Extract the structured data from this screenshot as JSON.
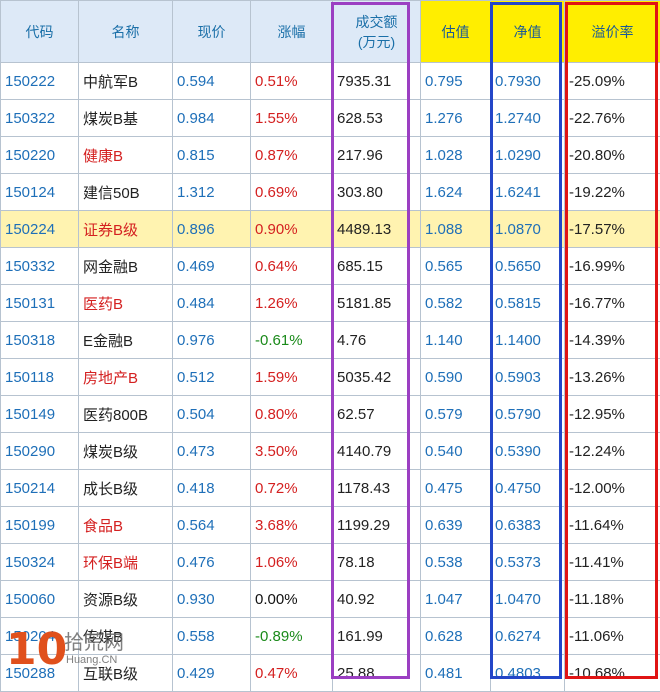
{
  "columns": {
    "code": "代码",
    "name": "名称",
    "price": "现价",
    "change": "涨幅",
    "volume": "成交额",
    "volume_unit": "(万元)",
    "estimate": "估值",
    "nav": "净值",
    "premium": "溢价率"
  },
  "colors": {
    "header_bg": "#dde9f7",
    "header_highlight_bg": "#ffee00",
    "row_highlight_bg": "#fff3b0",
    "volume_outline": "#9b3fc2",
    "nav_outline": "#2346c8",
    "premium_outline": "#e01414"
  },
  "rows": [
    {
      "code": "150222",
      "name": "中航军B",
      "name_red": false,
      "price": "0.594",
      "change": "0.51%",
      "dir": "up",
      "volume": "7935.31",
      "estimate": "0.795",
      "nav": "0.7930",
      "premium": "-25.09%"
    },
    {
      "code": "150322",
      "name": "煤炭B基",
      "name_red": false,
      "price": "0.984",
      "change": "1.55%",
      "dir": "up",
      "volume": "628.53",
      "estimate": "1.276",
      "nav": "1.2740",
      "premium": "-22.76%"
    },
    {
      "code": "150220",
      "name": "健康B",
      "name_red": true,
      "price": "0.815",
      "change": "0.87%",
      "dir": "up",
      "volume": "217.96",
      "estimate": "1.028",
      "nav": "1.0290",
      "premium": "-20.80%"
    },
    {
      "code": "150124",
      "name": "建信50B",
      "name_red": false,
      "price": "1.312",
      "change": "0.69%",
      "dir": "up",
      "volume": "303.80",
      "estimate": "1.624",
      "nav": "1.6241",
      "premium": "-19.22%"
    },
    {
      "code": "150224",
      "name": "证券B级",
      "name_red": true,
      "highlight": true,
      "price": "0.896",
      "change": "0.90%",
      "dir": "up",
      "volume": "4489.13",
      "estimate": "1.088",
      "nav": "1.0870",
      "premium": "-17.57%"
    },
    {
      "code": "150332",
      "name": "网金融B",
      "name_red": false,
      "price": "0.469",
      "change": "0.64%",
      "dir": "up",
      "volume": "685.15",
      "estimate": "0.565",
      "nav": "0.5650",
      "premium": "-16.99%"
    },
    {
      "code": "150131",
      "name": "医药B",
      "name_red": true,
      "price": "0.484",
      "change": "1.26%",
      "dir": "up",
      "volume": "5181.85",
      "estimate": "0.582",
      "nav": "0.5815",
      "premium": "-16.77%"
    },
    {
      "code": "150318",
      "name": "E金融B",
      "name_red": false,
      "price": "0.976",
      "change": "-0.61%",
      "dir": "down",
      "volume": "4.76",
      "estimate": "1.140",
      "nav": "1.1400",
      "premium": "-14.39%"
    },
    {
      "code": "150118",
      "name": "房地产B",
      "name_red": true,
      "price": "0.512",
      "change": "1.59%",
      "dir": "up",
      "volume": "5035.42",
      "estimate": "0.590",
      "nav": "0.5903",
      "premium": "-13.26%"
    },
    {
      "code": "150149",
      "name": "医药800B",
      "name_red": false,
      "price": "0.504",
      "change": "0.80%",
      "dir": "up",
      "volume": "62.57",
      "estimate": "0.579",
      "nav": "0.5790",
      "premium": "-12.95%"
    },
    {
      "code": "150290",
      "name": "煤炭B级",
      "name_red": false,
      "price": "0.473",
      "change": "3.50%",
      "dir": "up",
      "volume": "4140.79",
      "estimate": "0.540",
      "nav": "0.5390",
      "premium": "-12.24%"
    },
    {
      "code": "150214",
      "name": "成长B级",
      "name_red": false,
      "price": "0.418",
      "change": "0.72%",
      "dir": "up",
      "volume": "1178.43",
      "estimate": "0.475",
      "nav": "0.4750",
      "premium": "-12.00%"
    },
    {
      "code": "150199",
      "name": "食品B",
      "name_red": true,
      "price": "0.564",
      "change": "3.68%",
      "dir": "up",
      "volume": "1199.29",
      "estimate": "0.639",
      "nav": "0.6383",
      "premium": "-11.64%"
    },
    {
      "code": "150324",
      "name": "环保B端",
      "name_red": true,
      "price": "0.476",
      "change": "1.06%",
      "dir": "up",
      "volume": "78.18",
      "estimate": "0.538",
      "nav": "0.5373",
      "premium": "-11.41%"
    },
    {
      "code": "150060",
      "name": "资源B级",
      "name_red": false,
      "price": "0.930",
      "change": "0.00%",
      "dir": "flat",
      "volume": "40.92",
      "estimate": "1.047",
      "nav": "1.0470",
      "premium": "-11.18%"
    },
    {
      "code": "150204",
      "name": "传媒B",
      "name_red": false,
      "price": "0.558",
      "change": "-0.89%",
      "dir": "down",
      "volume": "161.99",
      "estimate": "0.628",
      "nav": "0.6274",
      "premium": "-11.06%"
    },
    {
      "code": "150288",
      "name": "互联B级",
      "name_red": false,
      "price": "0.429",
      "change": "0.47%",
      "dir": "up",
      "volume": "25.88",
      "estimate": "0.481",
      "nav": "0.4803",
      "premium": "-10.68%"
    }
  ],
  "watermark": {
    "logo": "10",
    "text": "拾荒网",
    "sub": "Huang.CN"
  }
}
